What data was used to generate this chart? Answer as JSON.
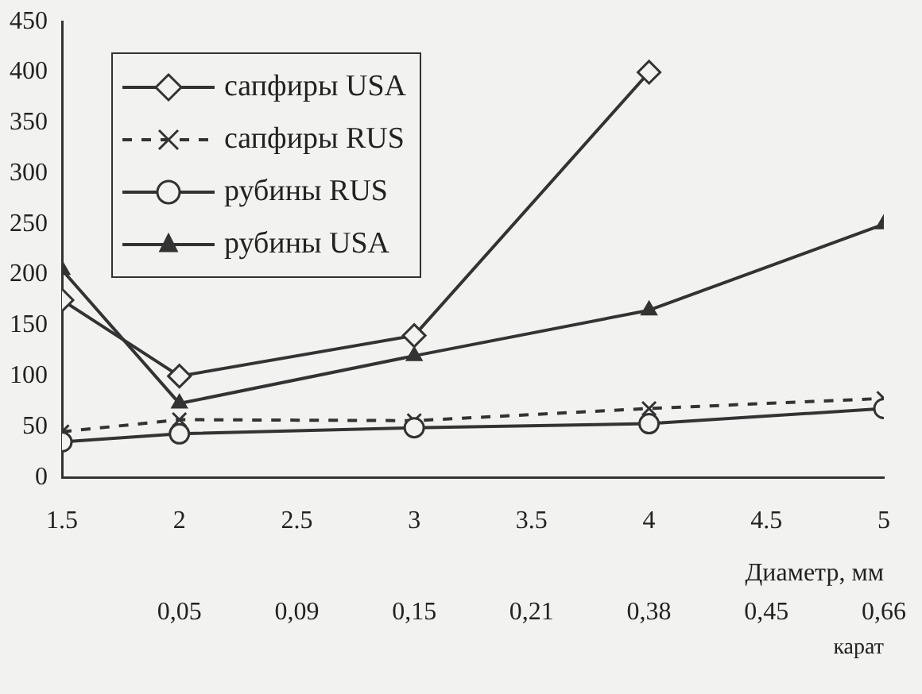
{
  "chart_data": {
    "type": "line",
    "x": [
      1.5,
      2,
      3,
      4,
      5
    ],
    "series": [
      {
        "name": "сапфиры USA",
        "color": "#333333",
        "marker": "diamond",
        "line_style": "solid",
        "values": [
          175,
          100,
          140,
          400,
          null
        ]
      },
      {
        "name": "сапфиры RUS",
        "color": "#333333",
        "marker": "cross",
        "line_style": "dashed",
        "values": [
          45,
          57,
          56,
          68,
          78
        ]
      },
      {
        "name": "рубины RUS",
        "color": "#333333",
        "marker": "circle",
        "line_style": "solid",
        "values": [
          35,
          43,
          49,
          53,
          68
        ]
      },
      {
        "name": "рубины USA",
        "color": "#333333",
        "marker": "triangle",
        "line_style": "solid",
        "values": [
          205,
          73,
          120,
          165,
          250
        ]
      }
    ],
    "xlim": [
      1.5,
      5
    ],
    "xticks": [
      1.5,
      2,
      2.5,
      3,
      3.5,
      4,
      4.5,
      5
    ],
    "ylim": [
      0,
      450
    ],
    "yticks": [
      0,
      50,
      100,
      150,
      200,
      250,
      300,
      350,
      400,
      450
    ],
    "xlabel": "Диаметр, мм",
    "annotations": [
      "0,05",
      "0,09",
      "0,15",
      "0,21",
      "0,38",
      "0,45",
      "0,66",
      "карат"
    ],
    "grid": false,
    "legend": "top left"
  }
}
